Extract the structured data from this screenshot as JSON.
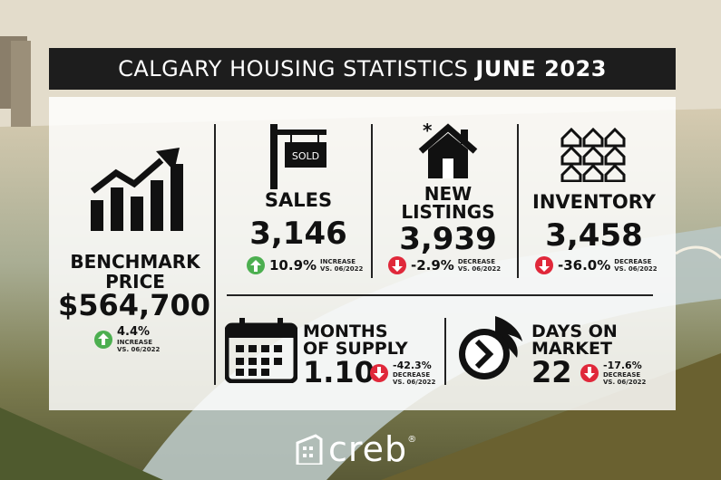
{
  "title": {
    "main": "CALGARY HOUSING STATISTICS",
    "bold": "JUNE 2023"
  },
  "benchmark": {
    "label1": "BENCHMARK",
    "label2": "PRICE",
    "value": "$564,700",
    "pct": "4.4%",
    "sub1": "INCREASE",
    "sub2": "VS. 06/2022",
    "icon": "bar-chart-up-icon"
  },
  "sales": {
    "sign_text": "SOLD",
    "label": "SALES",
    "value": "3,146",
    "pct": "10.9%",
    "sub1": "INCREASE",
    "sub2": "VS. 06/2022",
    "icon": "sold-sign-icon"
  },
  "new_listings": {
    "label1": "NEW",
    "label2": "LISTINGS",
    "value": "3,939",
    "pct": "-2.9%",
    "sub1": "DECREASE",
    "sub2": "VS. 06/2022",
    "icon": "new-house-icon"
  },
  "inventory": {
    "label": "INVENTORY",
    "value": "3,458",
    "pct": "-36.0%",
    "sub1": "DECREASE",
    "sub2": "VS. 06/2022",
    "icon": "houses-grid-icon"
  },
  "months_supply": {
    "label1": "MONTHS",
    "label2": "OF SUPPLY",
    "value": "1.10",
    "pct": "-42.3%",
    "sub1": "DECREASE",
    "sub2": "VS. 06/2022",
    "icon": "calendar-icon"
  },
  "days_market": {
    "label1": "DAYS ON",
    "label2": "MARKET",
    "value": "22",
    "pct": "-17.6%",
    "sub1": "DECREASE",
    "sub2": "VS. 06/2022",
    "icon": "speed-clock-icon"
  },
  "logo": {
    "text": "creb",
    "mark": "®"
  },
  "colors": {
    "up": "#4caf50",
    "down": "#e0283a",
    "title_bg": "#1d1d1d"
  }
}
